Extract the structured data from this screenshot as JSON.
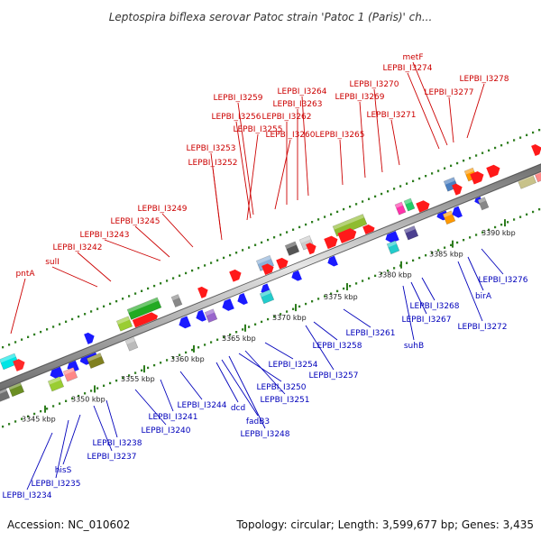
{
  "title": "Leptospira biflexa serovar Patoc strain 'Patoc 1 (Paris)' ch...",
  "footer": {
    "accession": "Accession: NC_010602",
    "summary": "Topology: circular; Length: 3,599,677 bp; Genes: 3,435"
  },
  "colors": {
    "forward_label": "#cc0000",
    "reverse_label": "#0000bb",
    "backbone": "#8c8c8c",
    "tick": "#2e7d1e"
  },
  "ticks": [
    "3345 kbp",
    "3350 kbp",
    "3355 kbp",
    "3360 kbp",
    "3365 kbp",
    "3370 kbp",
    "3375 kbp",
    "3380 kbp",
    "3385 kbp",
    "3390 kbp"
  ],
  "forward_genes": [
    "pntA",
    "sulI",
    "LEPBI_I3242",
    "LEPBI_I3243",
    "LEPBI_I3245",
    "LEPBI_I3249",
    "LEPBI_I3252",
    "LEPBI_I3253",
    "LEPBI_I3255",
    "LEPBI_I3256",
    "LEPBI_I3259",
    "LEPBI_I3260",
    "LEPBI_I3262",
    "LEPBI_I3263",
    "LEPBI_I3264",
    "LEPBI_I3265",
    "LEPBI_I3269",
    "LEPBI_I3270",
    "LEPBI_I3271",
    "LEPBI_I3274",
    "metF",
    "LEPBI_I3277",
    "LEPBI_I3278"
  ],
  "reverse_genes": [
    "LEPBI_I3234",
    "LEPBI_I3235",
    "hisS",
    "LEPBI_I3237",
    "LEPBI_I3238",
    "LEPBI_I3240",
    "LEPBI_I3241",
    "LEPBI_I3244",
    "dcd",
    "fadB3",
    "LEPBI_I3248",
    "LEPBI_I3250",
    "LEPBI_I3251",
    "LEPBI_I3254",
    "LEPBI_I3257",
    "LEPBI_I3258",
    "LEPBI_I3261",
    "suhB",
    "LEPBI_I3267",
    "LEPBI_I3268",
    "LEPBI_I3272",
    "birA",
    "LEPBI_I3276"
  ]
}
